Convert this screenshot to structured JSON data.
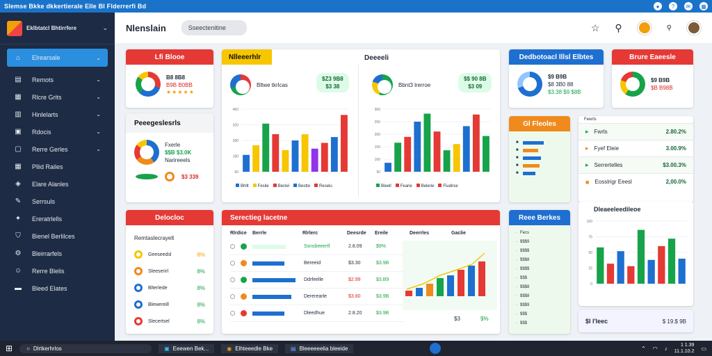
{
  "titlebar": {
    "title": "Slemse  Bkke  dkkertierale  Elle  Bl  Flderrerfi  Bd"
  },
  "brand": {
    "name": "Eklbtatcl Bhtirrfere"
  },
  "sidebar": {
    "items": [
      {
        "label": "Elrearsale",
        "icon": "home-icon"
      },
      {
        "label": "Remots",
        "icon": "file-icon"
      },
      {
        "label": "Rlcre Grits",
        "icon": "document-icon"
      },
      {
        "label": "Hinlelarts",
        "icon": "chart-icon"
      },
      {
        "label": "Rdocis",
        "icon": "image-icon"
      },
      {
        "label": "Rerre Gerles",
        "icon": "folder-icon"
      },
      {
        "label": "Pllid Railes",
        "icon": "grid-icon"
      },
      {
        "label": "Elare Alanles",
        "icon": "layers-icon"
      },
      {
        "label": "Serrsuls",
        "icon": "pencil-icon"
      },
      {
        "label": "Ereratrlells",
        "icon": "bolt-icon"
      },
      {
        "label": "Bienel Berlilces",
        "icon": "shield-icon"
      },
      {
        "label": "Bleirrarfels",
        "icon": "settings-icon"
      },
      {
        "label": "Rerre Blelis",
        "icon": "users-icon"
      },
      {
        "label": "Bleed Elates",
        "icon": "tag-icon"
      }
    ]
  },
  "topbar": {
    "title": "Nlenslain",
    "search_value": "Sseectenitine"
  },
  "cards": {
    "c1": {
      "header": "Lfi Blooe",
      "line1": "B8 8B8",
      "line2": "B9B B0BB",
      "stars": "★★★★★"
    },
    "c2": {
      "header": "Nlleeerhlr",
      "label": "Bltwe tkrlcas",
      "pill1": "$Z3 9B8",
      "pill2": "$3 38"
    },
    "c3": {
      "header": "Deeeeli",
      "label": "Bbnt3 lrerroe",
      "pill1": "$$ 90 8B",
      "pill2": "$3 09"
    },
    "c4": {
      "header": "Dedbotoacl lllsl Elbtes",
      "line1": "$9 B9B",
      "line2": "$8 3B0 88",
      "line3": "$3.38 $9 $8B"
    },
    "c5": {
      "header": "Brure Eaeesle",
      "line1": "$9 B9B",
      "line2": "$B B98B"
    },
    "c6": {
      "header": "Peeegeslesrls",
      "line1": "Fxerle",
      "line2": "$$B $3.0K",
      "line3": "Narireeels",
      "line4": "$3 339"
    },
    "c7": {
      "header": "Gl Fleoles"
    },
    "c8": {
      "rows": [
        {
          "label": "Fwrls",
          "value": "2.80.2%"
        },
        {
          "label": "Fyef Eleie",
          "value": "3.00.9%"
        },
        {
          "label": "Serrertelles",
          "value": "$3.00.3%"
        },
        {
          "label": "Eosslrigr Eeesl",
          "value": "2,00.0%"
        }
      ],
      "title": "Fewrls"
    },
    "c9": {
      "header": "Delocloc",
      "rows": [
        {
          "label": "Remtaslecrayelt",
          "value": ""
        },
        {
          "label": "Geeseedsl",
          "value": "8%"
        },
        {
          "label": "Sleeserirl",
          "value": "8%"
        },
        {
          "label": "Blterlede",
          "value": "8%"
        },
        {
          "label": "Blewereill",
          "value": "8%"
        },
        {
          "label": "Slecertsel",
          "value": "8%"
        }
      ]
    },
    "c10": {
      "header": "Serectieg lacetne",
      "cols": [
        "Rlrdice",
        "Berrle",
        "Rlrlerc",
        "Deesrde",
        "Ereile",
        "Deerrles",
        "Gaclie"
      ],
      "rows": [
        {
          "name": "Ssnsbeeertf",
          "v1": "2.8.09",
          "v2": "$9%"
        },
        {
          "name": "Bereeid",
          "v1": "$3.30",
          "v2": "$3.9B"
        },
        {
          "name": "Ddrfeelle",
          "v1": "$2.99",
          "v2": "$3.B9"
        },
        {
          "name": "Dererearle",
          "v1": "$3.80",
          "v2": "$3.9B"
        },
        {
          "name": "Dleedhue",
          "v1": "2.8.20",
          "v2": "$3.9B"
        }
      ],
      "foot1": "$3",
      "foot2": "$%"
    },
    "c11": {
      "header": "Reee Berkes",
      "rows": [
        "Fecs",
        "$$$9",
        "$$$$",
        "$$$8",
        "$$$$",
        "$$$",
        "$$$8",
        "$$$8",
        "$$$9",
        "$$$",
        "$$$"
      ]
    },
    "c12": {
      "title": "Dleaeeleedileoe",
      "bottom_left": "$l l'leec",
      "bottom_right": "$ 19.$ 9B"
    }
  },
  "charts": {
    "chart_data": [
      {
        "type": "bar",
        "categories": [
          "1",
          "2",
          "3",
          "4",
          "5",
          "6",
          "7",
          "8",
          "9",
          "10",
          "11"
        ],
        "series": [
          {
            "name": "",
            "values": [
              35,
              55,
              100,
              78,
              45,
              65,
              78,
              48,
              60,
              72,
              118
            ]
          }
        ],
        "yticks": [
          "460",
          "320",
          "280",
          "180",
          "60"
        ]
      },
      {
        "type": "bar",
        "categories": [
          "1",
          "2",
          "3",
          "4",
          "5",
          "6",
          "7",
          "8",
          "9",
          "10",
          "11"
        ],
        "series": [
          {
            "name": "",
            "values": [
              20,
              65,
              78,
              112,
              130,
              90,
              48,
              62,
              102,
              128,
              80
            ]
          }
        ],
        "yticks": [
          "300",
          "250",
          "200",
          "150",
          "100",
          "50"
        ]
      },
      {
        "type": "bar",
        "categories": [
          "1",
          "2",
          "3",
          "4",
          "5",
          "6",
          "7",
          "8",
          "9"
        ],
        "series": [
          {
            "name": "",
            "values": [
              58,
              32,
              52,
              28,
              86,
              38,
              60,
              72,
              40
            ]
          }
        ],
        "yticks": [
          "100",
          "75",
          "50",
          "25",
          "0"
        ]
      }
    ],
    "legend1": [
      "Bhllt",
      "Fesile",
      "Beclel",
      "Bestte",
      "Reselu"
    ],
    "legend2": [
      "Bleell",
      "Fearie",
      "Belerie",
      "Fiudirse"
    ],
    "colors": [
      "#1e6fd0",
      "#f7c600",
      "#16a34a",
      "#e53935",
      "#f08a1c",
      "#9333ea"
    ]
  },
  "taskbar": {
    "search": "Dlrtkerhrlos",
    "app1": "Eeewen Bek...",
    "app2": "Elhteeedle Bke",
    "app3": "Bleeeeeelia bleeide",
    "time": "1 1.39",
    "date": "11.1.10.2"
  }
}
